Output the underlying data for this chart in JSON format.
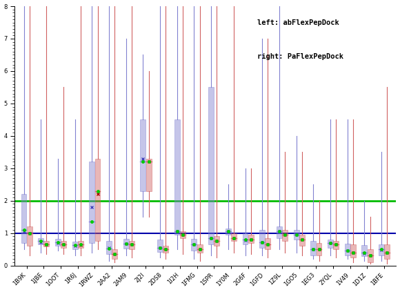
{
  "categories": [
    "1B9K",
    "1JBE",
    "1OOT",
    "1R6J",
    "1RWZ",
    "2AA2",
    "2AM9",
    "2J2I",
    "2DS8",
    "1I2H",
    "1FMG",
    "1SPR",
    "1Y0M",
    "2G6F",
    "1GFD",
    "1Z9L",
    "1GO5",
    "1EG3",
    "2YQL",
    "1V49",
    "1D1Z",
    "1BFE"
  ],
  "legend_text": [
    "left: abFlexPepDock",
    "right: PaFlexPepDock"
  ],
  "ref_line_green": 2.0,
  "ref_line_blue": 1.0,
  "ylim": [
    0,
    8
  ],
  "ytick_minor_step": 0.1,
  "ytick_major_step": 1.0,
  "blue_boxes": [
    {
      "q1": 0.7,
      "median": 1.1,
      "q3": 2.2,
      "whisker_lo": 0.5,
      "whisker_hi": 40,
      "mean": 1.05
    },
    {
      "q1": 0.65,
      "median": 0.75,
      "q3": 0.85,
      "whisker_lo": 0.4,
      "whisker_hi": 4.5,
      "mean": 0.72
    },
    {
      "q1": 0.6,
      "median": 0.72,
      "q3": 0.83,
      "whisker_lo": 0.45,
      "whisker_hi": 3.3,
      "mean": 0.7
    },
    {
      "q1": 0.5,
      "median": 0.62,
      "q3": 0.73,
      "whisker_lo": 0.3,
      "whisker_hi": 4.5,
      "mean": 0.61
    },
    {
      "q1": 0.7,
      "median": 1.35,
      "q3": 3.2,
      "whisker_lo": 0.4,
      "whisker_hi": 16.5,
      "mean": 1.8
    },
    {
      "q1": 0.35,
      "median": 0.52,
      "q3": 0.75,
      "whisker_lo": 0.15,
      "whisker_hi": 43.0,
      "mean": 0.55
    },
    {
      "q1": 0.52,
      "median": 0.68,
      "q3": 0.82,
      "whisker_lo": 0.3,
      "whisker_hi": 7.0,
      "mean": 0.68
    },
    {
      "q1": 2.3,
      "median": 3.2,
      "q3": 4.5,
      "whisker_lo": 1.5,
      "whisker_hi": 6.5,
      "mean": 3.3
    },
    {
      "q1": 0.42,
      "median": 0.55,
      "q3": 0.8,
      "whisker_lo": 0.25,
      "whisker_hi": 23.0,
      "mean": 0.55
    },
    {
      "q1": 0.95,
      "median": 1.05,
      "q3": 4.5,
      "whisker_lo": 0.5,
      "whisker_hi": 10.0,
      "mean": 1.05
    },
    {
      "q1": 0.45,
      "median": 0.65,
      "q3": 0.82,
      "whisker_lo": 0.2,
      "whisker_hi": 48.0,
      "mean": 0.65
    },
    {
      "q1": 0.65,
      "median": 0.85,
      "q3": 5.5,
      "whisker_lo": 0.3,
      "whisker_hi": 8.0,
      "mean": 0.85
    },
    {
      "q1": 0.95,
      "median": 1.05,
      "q3": 1.15,
      "whisker_lo": 0.5,
      "whisker_hi": 2.5,
      "mean": 1.05
    },
    {
      "q1": 0.65,
      "median": 0.8,
      "q3": 1.0,
      "whisker_lo": 0.3,
      "whisker_hi": 3.0,
      "mean": 0.78
    },
    {
      "q1": 0.55,
      "median": 0.72,
      "q3": 1.1,
      "whisker_lo": 0.3,
      "whisker_hi": 7.0,
      "mean": 0.72
    },
    {
      "q1": 0.85,
      "median": 1.05,
      "q3": 1.2,
      "whisker_lo": 0.5,
      "whisker_hi": 29.0,
      "mean": 1.05
    },
    {
      "q1": 0.8,
      "median": 0.95,
      "q3": 1.1,
      "whisker_lo": 0.4,
      "whisker_hi": 4.0,
      "mean": 0.95
    },
    {
      "q1": 0.3,
      "median": 0.5,
      "q3": 0.75,
      "whisker_lo": 0.2,
      "whisker_hi": 2.5,
      "mean": 0.5
    },
    {
      "q1": 0.55,
      "median": 0.7,
      "q3": 0.8,
      "whisker_lo": 0.3,
      "whisker_hi": 4.5,
      "mean": 0.7
    },
    {
      "q1": 0.3,
      "median": 0.45,
      "q3": 0.68,
      "whisker_lo": 0.2,
      "whisker_hi": 4.5,
      "mean": 0.45
    },
    {
      "q1": 0.28,
      "median": 0.4,
      "q3": 0.62,
      "whisker_lo": 0.15,
      "whisker_hi": 2.0,
      "mean": 0.38
    },
    {
      "q1": 0.3,
      "median": 0.5,
      "q3": 0.65,
      "whisker_lo": 0.15,
      "whisker_hi": 3.5,
      "mean": 0.47
    }
  ],
  "red_boxes": [
    {
      "q1": 0.6,
      "median": 1.0,
      "q3": 1.2,
      "whisker_lo": 0.3,
      "whisker_hi": 42.0,
      "mean": 1.0
    },
    {
      "q1": 0.58,
      "median": 0.65,
      "q3": 0.75,
      "whisker_lo": 0.35,
      "whisker_hi": 10.0,
      "mean": 0.65
    },
    {
      "q1": 0.55,
      "median": 0.65,
      "q3": 0.75,
      "whisker_lo": 0.35,
      "whisker_hi": 5.5,
      "mean": 0.65
    },
    {
      "q1": 0.55,
      "median": 0.65,
      "q3": 0.75,
      "whisker_lo": 0.3,
      "whisker_hi": 33.5,
      "mean": 0.63
    },
    {
      "q1": 0.75,
      "median": 2.3,
      "q3": 3.3,
      "whisker_lo": 0.5,
      "whisker_hi": 14.0,
      "mean": 2.2
    },
    {
      "q1": 0.2,
      "median": 0.35,
      "q3": 0.5,
      "whisker_lo": 0.1,
      "whisker_hi": 43.5,
      "mean": 0.35
    },
    {
      "q1": 0.5,
      "median": 0.65,
      "q3": 0.75,
      "whisker_lo": 0.25,
      "whisker_hi": 9.0,
      "mean": 0.65
    },
    {
      "q1": 2.3,
      "median": 3.2,
      "q3": 3.3,
      "whisker_lo": 1.5,
      "whisker_hi": 6.0,
      "mean": 3.2
    },
    {
      "q1": 0.4,
      "median": 0.5,
      "q3": 0.6,
      "whisker_lo": 0.2,
      "whisker_hi": 20.5,
      "mean": 0.5
    },
    {
      "q1": 0.85,
      "median": 0.95,
      "q3": 1.05,
      "whisker_lo": 0.35,
      "whisker_hi": 12.5,
      "mean": 0.95
    },
    {
      "q1": 0.4,
      "median": 0.5,
      "q3": 0.65,
      "whisker_lo": 0.15,
      "whisker_hi": 45.5,
      "mean": 0.5
    },
    {
      "q1": 0.6,
      "median": 0.75,
      "q3": 0.9,
      "whisker_lo": 0.25,
      "whisker_hi": 21.0,
      "mean": 0.75
    },
    {
      "q1": 0.75,
      "median": 0.85,
      "q3": 1.0,
      "whisker_lo": 0.4,
      "whisker_hi": 19.5,
      "mean": 0.85
    },
    {
      "q1": 0.7,
      "median": 0.8,
      "q3": 0.95,
      "whisker_lo": 0.35,
      "whisker_hi": 3.0,
      "mean": 0.8
    },
    {
      "q1": 0.5,
      "median": 0.65,
      "q3": 0.85,
      "whisker_lo": 0.25,
      "whisker_hi": 7.0,
      "mean": 0.65
    },
    {
      "q1": 0.75,
      "median": 0.95,
      "q3": 1.1,
      "whisker_lo": 0.4,
      "whisker_hi": 3.5,
      "mean": 0.95
    },
    {
      "q1": 0.6,
      "median": 0.8,
      "q3": 0.95,
      "whisker_lo": 0.3,
      "whisker_hi": 3.5,
      "mean": 0.8
    },
    {
      "q1": 0.3,
      "median": 0.5,
      "q3": 0.7,
      "whisker_lo": 0.15,
      "whisker_hi": 2.0,
      "mean": 0.5
    },
    {
      "q1": 0.5,
      "median": 0.65,
      "q3": 0.75,
      "whisker_lo": 0.25,
      "whisker_hi": 4.5,
      "mean": 0.65
    },
    {
      "q1": 0.25,
      "median": 0.4,
      "q3": 0.65,
      "whisker_lo": 0.1,
      "whisker_hi": 4.5,
      "mean": 0.4
    },
    {
      "q1": 0.1,
      "median": 0.3,
      "q3": 0.5,
      "whisker_lo": 0.05,
      "whisker_hi": 1.5,
      "mean": 0.3
    },
    {
      "q1": 0.2,
      "median": 0.4,
      "q3": 0.65,
      "whisker_lo": 0.05,
      "whisker_hi": 5.5,
      "mean": 0.4
    }
  ],
  "blue_color": "#8080d0",
  "red_color": "#d06060",
  "green_marker_color": "#00cc00",
  "blue_mean_marker_color": "#4040bb",
  "red_mean_marker_color": "#aa0000",
  "green_line_color": "#00bb00",
  "blue_line_color": "#0000aa",
  "box_width": 0.32,
  "figsize": [
    5.8,
    4.23
  ],
  "dpi": 100
}
